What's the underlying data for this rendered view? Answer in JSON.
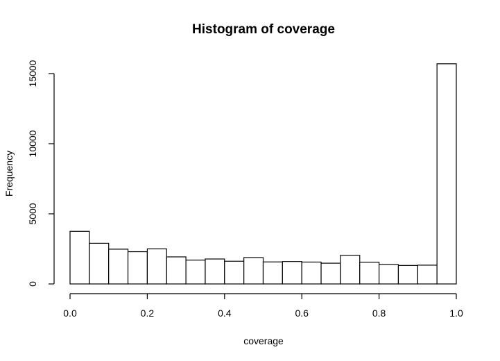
{
  "chart_data": {
    "type": "bar",
    "title": "Histogram of coverage",
    "xlabel": "coverage",
    "ylabel": "Frequency",
    "xlim": [
      0.0,
      1.0
    ],
    "ylim": [
      0,
      15700
    ],
    "x_ticks": [
      "0.0",
      "0.2",
      "0.4",
      "0.6",
      "0.8",
      "1.0"
    ],
    "y_ticks": [
      "0",
      "5000",
      "10000",
      "15000"
    ],
    "bin_edges": [
      0.0,
      0.05,
      0.1,
      0.15,
      0.2,
      0.25,
      0.3,
      0.35,
      0.4,
      0.45,
      0.5,
      0.55,
      0.6,
      0.65,
      0.7,
      0.75,
      0.8,
      0.85,
      0.9,
      0.95,
      1.0
    ],
    "values": [
      3750,
      2900,
      2480,
      2300,
      2500,
      1930,
      1700,
      1780,
      1620,
      1880,
      1570,
      1600,
      1560,
      1480,
      2040,
      1550,
      1380,
      1320,
      1340,
      15700
    ],
    "grid": false,
    "legend": "none"
  }
}
